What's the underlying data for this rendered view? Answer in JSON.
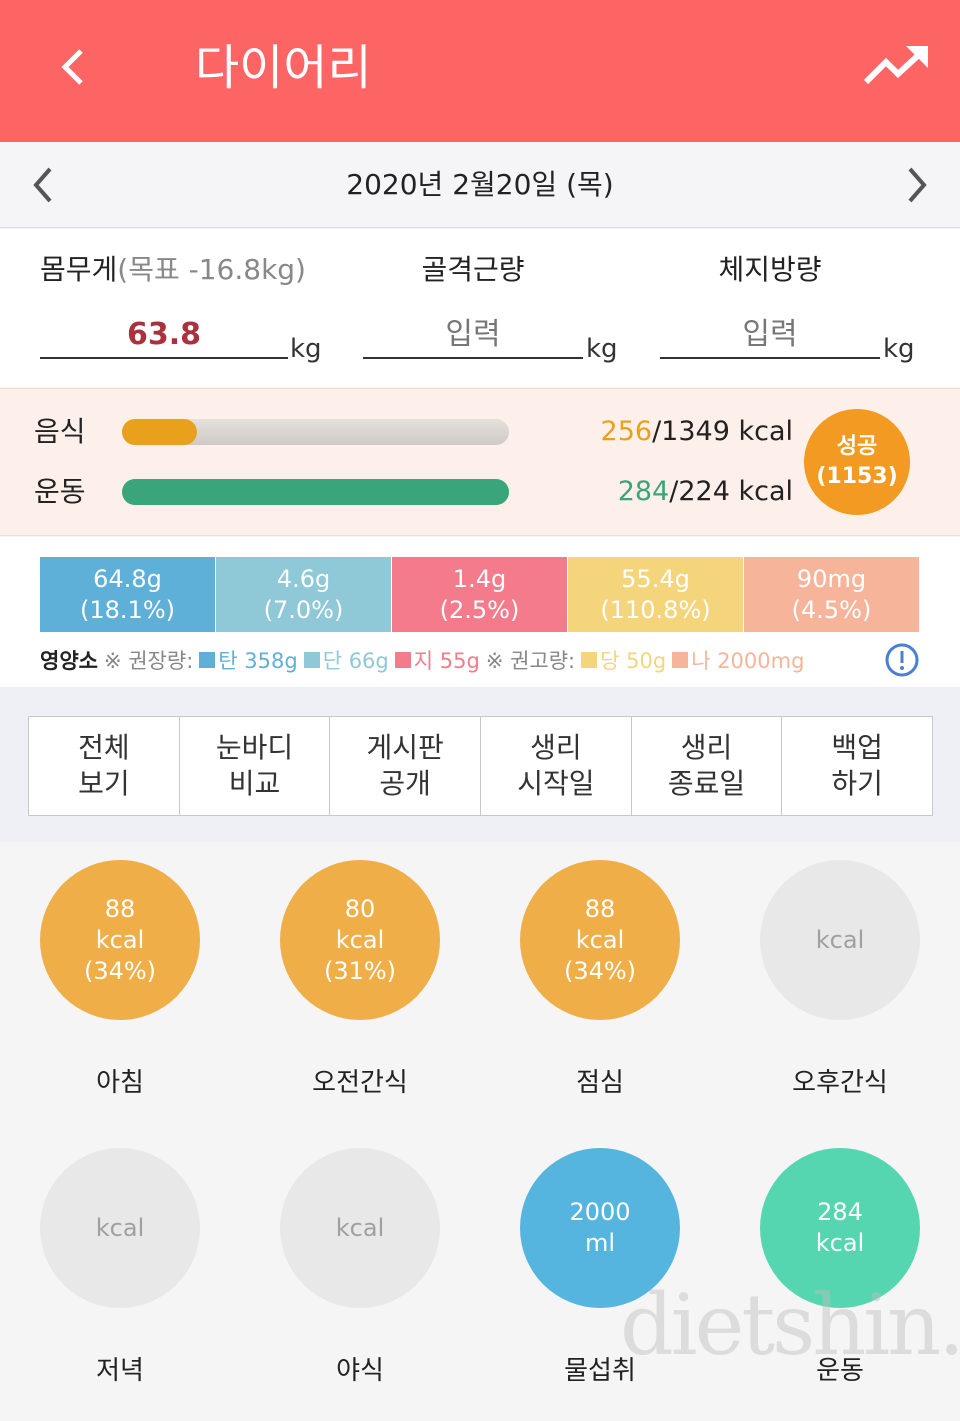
{
  "header": {
    "title": "다이어리"
  },
  "date_nav": {
    "date": "2020년 2월20일 (목)"
  },
  "body_metrics": [
    {
      "label": "몸무게",
      "note": "(목표 -16.8kg)",
      "value": "63.8",
      "unit": "kg"
    },
    {
      "label": "골격근량",
      "value": "입력",
      "unit": "kg"
    },
    {
      "label": "체지방량",
      "value": "입력",
      "unit": "kg"
    }
  ],
  "calories": {
    "rows": [
      {
        "label": "음식",
        "current": "256",
        "target": "/1349 kcal",
        "color": "#e9a11c"
      },
      {
        "label": "운동",
        "current": "284",
        "target": "/224 kcal",
        "color": "#3aa57a"
      }
    ],
    "badge": [
      "성공",
      "(1153)"
    ]
  },
  "nutrients": {
    "segments": [
      {
        "amount": "64.8g",
        "percent": "(18.1%)",
        "color": "#5eb0d8"
      },
      {
        "amount": "4.6g",
        "percent": "(7.0%)",
        "color": "#8fc8d6"
      },
      {
        "amount": "1.4g",
        "percent": "(2.5%)",
        "color": "#f47b8b"
      },
      {
        "amount": "55.4g",
        "percent": "(110.8%)",
        "color": "#f5d57c"
      },
      {
        "amount": "90mg",
        "percent": "(4.5%)",
        "color": "#f6b59b"
      }
    ],
    "legend": {
      "title": "영양소",
      "recommended": "※ 권장량:",
      "recommended_items": [
        {
          "text": "탄 358g",
          "color": "#5eb0d8"
        },
        {
          "text": "단 66g",
          "color": "#8fc8d6"
        },
        {
          "text": "지 55g",
          "color": "#f47b8b"
        }
      ],
      "advised": "※ 권고량:",
      "advised_items": [
        {
          "text": "당 50g",
          "color": "#f5d57c"
        },
        {
          "text": "나 2000mg",
          "color": "#f6b59b"
        }
      ]
    }
  },
  "menu": [
    [
      "전체",
      "보기"
    ],
    [
      "눈바디",
      "비교"
    ],
    [
      "게시판",
      "공개"
    ],
    [
      "생리",
      "시작일"
    ],
    [
      "생리",
      "종료일"
    ],
    [
      "백업",
      "하기"
    ]
  ],
  "meals": [
    {
      "lines": [
        "88",
        "kcal",
        "(34%)"
      ],
      "label": "아침",
      "color": "#efae48",
      "text_color": "#ffffff"
    },
    {
      "lines": [
        "80",
        "kcal",
        "(31%)"
      ],
      "label": "오전간식",
      "color": "#efae48",
      "text_color": "#ffffff"
    },
    {
      "lines": [
        "88",
        "kcal",
        "(34%)"
      ],
      "label": "점심",
      "color": "#efae48",
      "text_color": "#ffffff"
    },
    {
      "lines": [
        "kcal"
      ],
      "label": "오후간식",
      "color": "#e8e8e8",
      "text_color": "#a0a0a0"
    },
    {
      "lines": [
        "kcal"
      ],
      "label": "저녁",
      "color": "#e8e8e8",
      "text_color": "#a0a0a0"
    },
    {
      "lines": [
        "kcal"
      ],
      "label": "야식",
      "color": "#e8e8e8",
      "text_color": "#a0a0a0"
    },
    {
      "lines": [
        "2000",
        "ml"
      ],
      "label": "물섭취",
      "color": "#55b5de",
      "text_color": "#ffffff"
    },
    {
      "lines": [
        "284",
        "kcal"
      ],
      "label": "운동",
      "color": "#55d6b0",
      "text_color": "#ffffff"
    }
  ],
  "watermark": "dietshin.com"
}
